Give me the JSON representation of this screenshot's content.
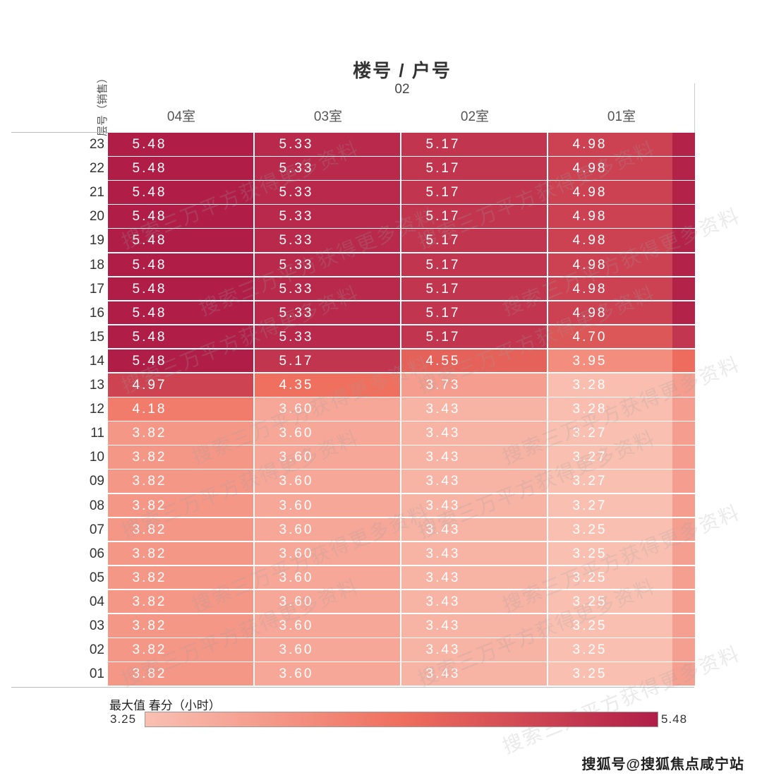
{
  "chart_data": {
    "type": "heatmap",
    "title": "楼号 / 户号",
    "building": "02",
    "row_axis_label": "层号（销售）",
    "columns": [
      "04室",
      "03室",
      "02室",
      "01室"
    ],
    "rows": [
      "23",
      "22",
      "21",
      "20",
      "19",
      "18",
      "17",
      "16",
      "15",
      "14",
      "13",
      "12",
      "11",
      "10",
      "09",
      "08",
      "07",
      "06",
      "05",
      "04",
      "03",
      "02",
      "01"
    ],
    "values": [
      [
        5.48,
        5.33,
        5.17,
        4.98
      ],
      [
        5.48,
        5.33,
        5.17,
        4.98
      ],
      [
        5.48,
        5.33,
        5.17,
        4.98
      ],
      [
        5.48,
        5.33,
        5.17,
        4.98
      ],
      [
        5.48,
        5.33,
        5.17,
        4.98
      ],
      [
        5.48,
        5.33,
        5.17,
        4.98
      ],
      [
        5.48,
        5.33,
        5.17,
        4.98
      ],
      [
        5.48,
        5.33,
        5.17,
        4.98
      ],
      [
        5.48,
        5.33,
        5.17,
        4.7
      ],
      [
        5.48,
        5.17,
        4.55,
        3.95
      ],
      [
        4.97,
        4.35,
        3.73,
        3.28
      ],
      [
        4.18,
        3.6,
        3.43,
        3.28
      ],
      [
        3.82,
        3.6,
        3.43,
        3.27
      ],
      [
        3.82,
        3.6,
        3.43,
        3.27
      ],
      [
        3.82,
        3.6,
        3.43,
        3.27
      ],
      [
        3.82,
        3.6,
        3.43,
        3.27
      ],
      [
        3.82,
        3.6,
        3.43,
        3.25
      ],
      [
        3.82,
        3.6,
        3.43,
        3.25
      ],
      [
        3.82,
        3.6,
        3.43,
        3.25
      ],
      [
        3.82,
        3.6,
        3.43,
        3.25
      ],
      [
        3.82,
        3.6,
        3.43,
        3.25
      ],
      [
        3.82,
        3.6,
        3.43,
        3.25
      ],
      [
        3.82,
        3.6,
        3.43,
        3.25
      ]
    ],
    "legend": {
      "title": "最大值 春分（小时）",
      "min": "3.25",
      "max": "5.48",
      "min_value": 3.25,
      "max_value": 5.48,
      "color_low": "#f9c0b2",
      "color_mid": "#ef6f5e",
      "color_high": "#b01e48"
    }
  },
  "watermark_text": "搜索三万平方获得更多资料",
  "credit": "搜狐号@搜狐焦点咸宁站"
}
